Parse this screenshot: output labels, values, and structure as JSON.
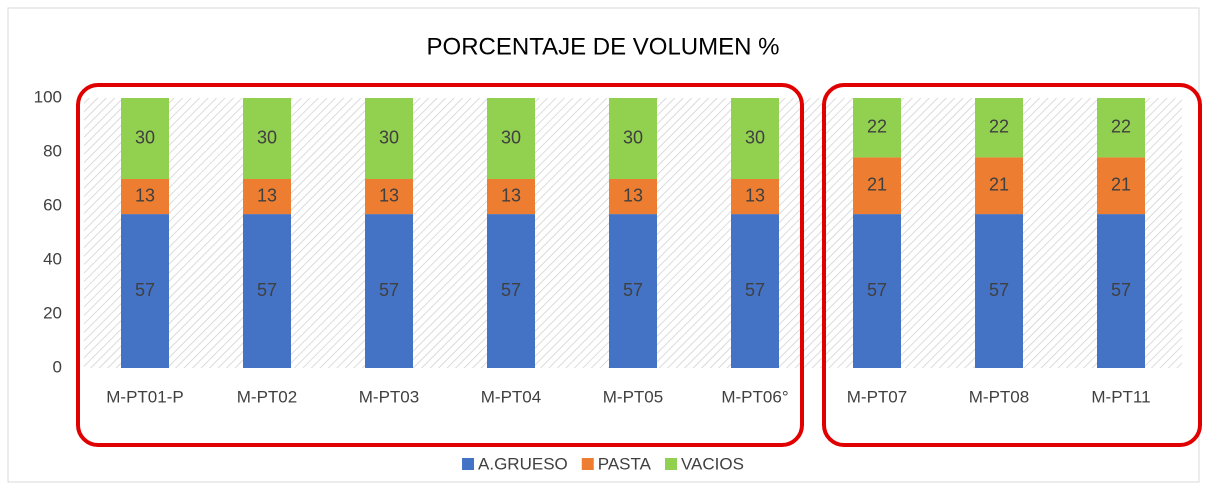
{
  "chart_data": {
    "type": "bar",
    "stacked": true,
    "title": "PORCENTAJE DE VOLUMEN %",
    "categories": [
      "M-PT01-P",
      "M-PT02",
      "M-PT03",
      "M-PT04",
      "M-PT05",
      "M-PT06°",
      "M-PT07",
      "M-PT08",
      "M-PT11"
    ],
    "series": [
      {
        "name": "A.GRUESO",
        "color": "#4472c4",
        "values": [
          57,
          57,
          57,
          57,
          57,
          57,
          57,
          57,
          57
        ]
      },
      {
        "name": "PASTA",
        "color": "#ed7d31",
        "values": [
          13,
          13,
          13,
          13,
          13,
          13,
          21,
          21,
          21
        ]
      },
      {
        "name": "VACIOS",
        "color": "#92d050",
        "values": [
          30,
          30,
          30,
          30,
          30,
          30,
          22,
          22,
          22
        ]
      }
    ],
    "ylim": [
      0,
      100
    ],
    "yticks": [
      0,
      20,
      40,
      60,
      80,
      100
    ],
    "grid": false,
    "legend": "bottom"
  }
}
